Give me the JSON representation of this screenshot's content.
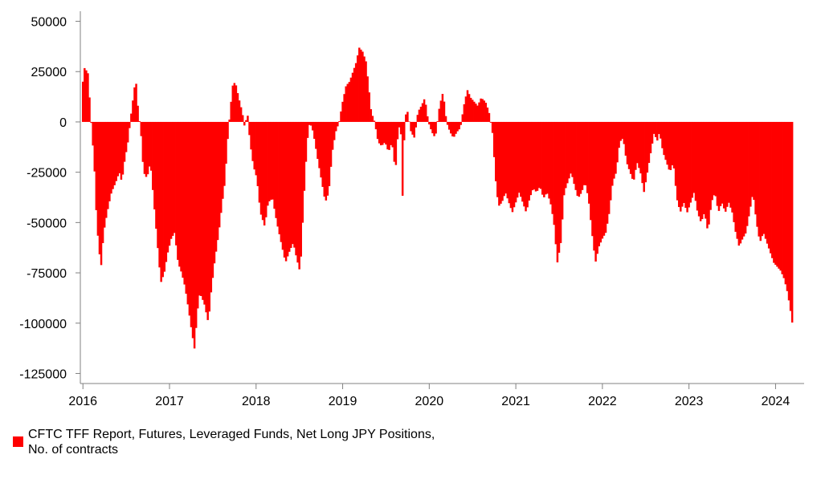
{
  "chart_data": {
    "type": "bar",
    "title": "",
    "xlabel": "",
    "ylabel": "",
    "ylim": [
      -130000,
      55000
    ],
    "xlim": [
      2015.97,
      2024.33
    ],
    "y_ticks": [
      50000,
      25000,
      0,
      -25000,
      -50000,
      -75000,
      -100000,
      -125000
    ],
    "x_ticks": [
      {
        "label": "2016",
        "value": 2016.0
      },
      {
        "label": "2017",
        "value": 2017.0
      },
      {
        "label": "2018",
        "value": 2018.0
      },
      {
        "label": "2019",
        "value": 2019.0
      },
      {
        "label": "2020",
        "value": 2020.0
      },
      {
        "label": "2021",
        "value": 2021.0
      },
      {
        "label": "2022",
        "value": 2022.0
      },
      {
        "label": "2023",
        "value": 2023.0
      },
      {
        "label": "2024",
        "value": 2024.0
      }
    ],
    "color": "#ff0000",
    "series": [
      {
        "name": "CFTC TFF Report, Futures, Leveraged Funds, Net Long JPY Positions, No. of contracts",
        "anchors": [
          [
            2016.0,
            20000
          ],
          [
            2016.02,
            27000
          ],
          [
            2016.06,
            24000
          ],
          [
            2016.08,
            10000
          ],
          [
            2016.1,
            -3000
          ],
          [
            2016.13,
            -20000
          ],
          [
            2016.16,
            -50000
          ],
          [
            2016.19,
            -65000
          ],
          [
            2016.21,
            -72000
          ],
          [
            2016.24,
            -55000
          ],
          [
            2016.28,
            -45000
          ],
          [
            2016.33,
            -35000
          ],
          [
            2016.38,
            -30000
          ],
          [
            2016.42,
            -25000
          ],
          [
            2016.45,
            -30000
          ],
          [
            2016.48,
            -20000
          ],
          [
            2016.52,
            -10000
          ],
          [
            2016.56,
            5000
          ],
          [
            2016.59,
            15000
          ],
          [
            2016.61,
            22000
          ],
          [
            2016.64,
            5000
          ],
          [
            2016.67,
            -5000
          ],
          [
            2016.7,
            -25000
          ],
          [
            2016.74,
            -28000
          ],
          [
            2016.78,
            -20000
          ],
          [
            2016.82,
            -40000
          ],
          [
            2016.86,
            -60000
          ],
          [
            2016.9,
            -80000
          ],
          [
            2016.94,
            -75000
          ],
          [
            2016.98,
            -65000
          ],
          [
            2017.02,
            -58000
          ],
          [
            2017.06,
            -55000
          ],
          [
            2017.1,
            -70000
          ],
          [
            2017.14,
            -75000
          ],
          [
            2017.18,
            -82000
          ],
          [
            2017.22,
            -93000
          ],
          [
            2017.26,
            -105000
          ],
          [
            2017.29,
            -113000
          ],
          [
            2017.32,
            -95000
          ],
          [
            2017.35,
            -85000
          ],
          [
            2017.4,
            -90000
          ],
          [
            2017.45,
            -100000
          ],
          [
            2017.48,
            -85000
          ],
          [
            2017.52,
            -70000
          ],
          [
            2017.57,
            -55000
          ],
          [
            2017.61,
            -40000
          ],
          [
            2017.64,
            -30000
          ],
          [
            2017.67,
            -10000
          ],
          [
            2017.7,
            5000
          ],
          [
            2017.73,
            18000
          ],
          [
            2017.76,
            20000
          ],
          [
            2017.8,
            12000
          ],
          [
            2017.84,
            5000
          ],
          [
            2017.87,
            -3000
          ],
          [
            2017.9,
            5000
          ],
          [
            2017.93,
            -10000
          ],
          [
            2017.97,
            -22000
          ],
          [
            2018.01,
            -28000
          ],
          [
            2018.05,
            -45000
          ],
          [
            2018.1,
            -52000
          ],
          [
            2018.14,
            -40000
          ],
          [
            2018.19,
            -38000
          ],
          [
            2018.24,
            -50000
          ],
          [
            2018.29,
            -60000
          ],
          [
            2018.34,
            -70000
          ],
          [
            2018.38,
            -65000
          ],
          [
            2018.43,
            -60000
          ],
          [
            2018.47,
            -68000
          ],
          [
            2018.51,
            -75000
          ],
          [
            2018.55,
            -40000
          ],
          [
            2018.59,
            -10000
          ],
          [
            2018.62,
            0
          ],
          [
            2018.66,
            -5000
          ],
          [
            2018.71,
            -18000
          ],
          [
            2018.76,
            -30000
          ],
          [
            2018.8,
            -40000
          ],
          [
            2018.84,
            -35000
          ],
          [
            2018.88,
            -15000
          ],
          [
            2018.92,
            -5000
          ],
          [
            2018.96,
            0
          ],
          [
            2019.0,
            10000
          ],
          [
            2019.04,
            18000
          ],
          [
            2019.08,
            20000
          ],
          [
            2019.12,
            25000
          ],
          [
            2019.16,
            30000
          ],
          [
            2019.19,
            37000
          ],
          [
            2019.23,
            35000
          ],
          [
            2019.27,
            30000
          ],
          [
            2019.3,
            18000
          ],
          [
            2019.33,
            5000
          ],
          [
            2019.37,
            0
          ],
          [
            2019.41,
            -10000
          ],
          [
            2019.45,
            -12000
          ],
          [
            2019.49,
            -10000
          ],
          [
            2019.53,
            -15000
          ],
          [
            2019.57,
            -10000
          ],
          [
            2019.61,
            -25000
          ],
          [
            2019.64,
            -5000
          ],
          [
            2019.67,
            0
          ],
          [
            2019.69,
            -40000
          ],
          [
            2019.72,
            3000
          ],
          [
            2019.75,
            5000
          ],
          [
            2019.79,
            -5000
          ],
          [
            2019.83,
            -8000
          ],
          [
            2019.87,
            5000
          ],
          [
            2019.91,
            8000
          ],
          [
            2019.95,
            12000
          ],
          [
            2019.99,
            0
          ],
          [
            2020.03,
            -5000
          ],
          [
            2020.07,
            -8000
          ],
          [
            2020.12,
            8000
          ],
          [
            2020.16,
            15000
          ],
          [
            2020.2,
            0
          ],
          [
            2020.24,
            -5000
          ],
          [
            2020.28,
            -8000
          ],
          [
            2020.32,
            -5000
          ],
          [
            2020.36,
            -3000
          ],
          [
            2020.4,
            8000
          ],
          [
            2020.44,
            16000
          ],
          [
            2020.48,
            12000
          ],
          [
            2020.52,
            10000
          ],
          [
            2020.56,
            8000
          ],
          [
            2020.6,
            12000
          ],
          [
            2020.65,
            10000
          ],
          [
            2020.69,
            5000
          ],
          [
            2020.73,
            -5000
          ],
          [
            2020.77,
            -30000
          ],
          [
            2020.8,
            -42000
          ],
          [
            2020.84,
            -40000
          ],
          [
            2020.88,
            -35000
          ],
          [
            2020.92,
            -40000
          ],
          [
            2020.96,
            -45000
          ],
          [
            2021.0,
            -40000
          ],
          [
            2021.04,
            -35000
          ],
          [
            2021.08,
            -40000
          ],
          [
            2021.12,
            -45000
          ],
          [
            2021.16,
            -38000
          ],
          [
            2021.2,
            -33000
          ],
          [
            2021.24,
            -35000
          ],
          [
            2021.28,
            -32000
          ],
          [
            2021.32,
            -38000
          ],
          [
            2021.36,
            -35000
          ],
          [
            2021.4,
            -40000
          ],
          [
            2021.44,
            -50000
          ],
          [
            2021.48,
            -70000
          ],
          [
            2021.52,
            -60000
          ],
          [
            2021.56,
            -35000
          ],
          [
            2021.6,
            -30000
          ],
          [
            2021.64,
            -25000
          ],
          [
            2021.68,
            -32000
          ],
          [
            2021.72,
            -38000
          ],
          [
            2021.76,
            -35000
          ],
          [
            2021.8,
            -30000
          ],
          [
            2021.84,
            -38000
          ],
          [
            2021.88,
            -55000
          ],
          [
            2021.92,
            -70000
          ],
          [
            2021.96,
            -62000
          ],
          [
            2022.0,
            -58000
          ],
          [
            2022.04,
            -55000
          ],
          [
            2022.08,
            -45000
          ],
          [
            2022.12,
            -30000
          ],
          [
            2022.16,
            -25000
          ],
          [
            2022.2,
            -10000
          ],
          [
            2022.24,
            -8000
          ],
          [
            2022.28,
            -20000
          ],
          [
            2022.32,
            -25000
          ],
          [
            2022.36,
            -30000
          ],
          [
            2022.4,
            -20000
          ],
          [
            2022.44,
            -25000
          ],
          [
            2022.48,
            -35000
          ],
          [
            2022.52,
            -25000
          ],
          [
            2022.56,
            -15000
          ],
          [
            2022.6,
            -5000
          ],
          [
            2022.63,
            -10000
          ],
          [
            2022.66,
            -5000
          ],
          [
            2022.7,
            -15000
          ],
          [
            2022.74,
            -20000
          ],
          [
            2022.78,
            -25000
          ],
          [
            2022.82,
            -20000
          ],
          [
            2022.86,
            -38000
          ],
          [
            2022.9,
            -45000
          ],
          [
            2022.94,
            -40000
          ],
          [
            2022.98,
            -45000
          ],
          [
            2023.02,
            -40000
          ],
          [
            2023.06,
            -35000
          ],
          [
            2023.1,
            -45000
          ],
          [
            2023.14,
            -50000
          ],
          [
            2023.18,
            -45000
          ],
          [
            2023.22,
            -55000
          ],
          [
            2023.26,
            -40000
          ],
          [
            2023.3,
            -35000
          ],
          [
            2023.34,
            -45000
          ],
          [
            2023.38,
            -40000
          ],
          [
            2023.42,
            -45000
          ],
          [
            2023.46,
            -40000
          ],
          [
            2023.5,
            -45000
          ],
          [
            2023.54,
            -55000
          ],
          [
            2023.58,
            -62000
          ],
          [
            2023.62,
            -58000
          ],
          [
            2023.66,
            -55000
          ],
          [
            2023.7,
            -45000
          ],
          [
            2023.74,
            -35000
          ],
          [
            2023.78,
            -50000
          ],
          [
            2023.82,
            -60000
          ],
          [
            2023.86,
            -55000
          ],
          [
            2023.9,
            -60000
          ],
          [
            2023.94,
            -65000
          ],
          [
            2023.98,
            -70000
          ],
          [
            2024.02,
            -72000
          ],
          [
            2024.06,
            -74000
          ],
          [
            2024.1,
            -78000
          ],
          [
            2024.14,
            -85000
          ],
          [
            2024.17,
            -93000
          ],
          [
            2024.2,
            -102000
          ],
          [
            2024.33,
            -102000
          ]
        ]
      }
    ]
  },
  "legend": {
    "label": "CFTC TFF Report, Futures, Leveraged Funds, Net Long JPY Positions, No. of contracts",
    "color": "#ff0000"
  }
}
